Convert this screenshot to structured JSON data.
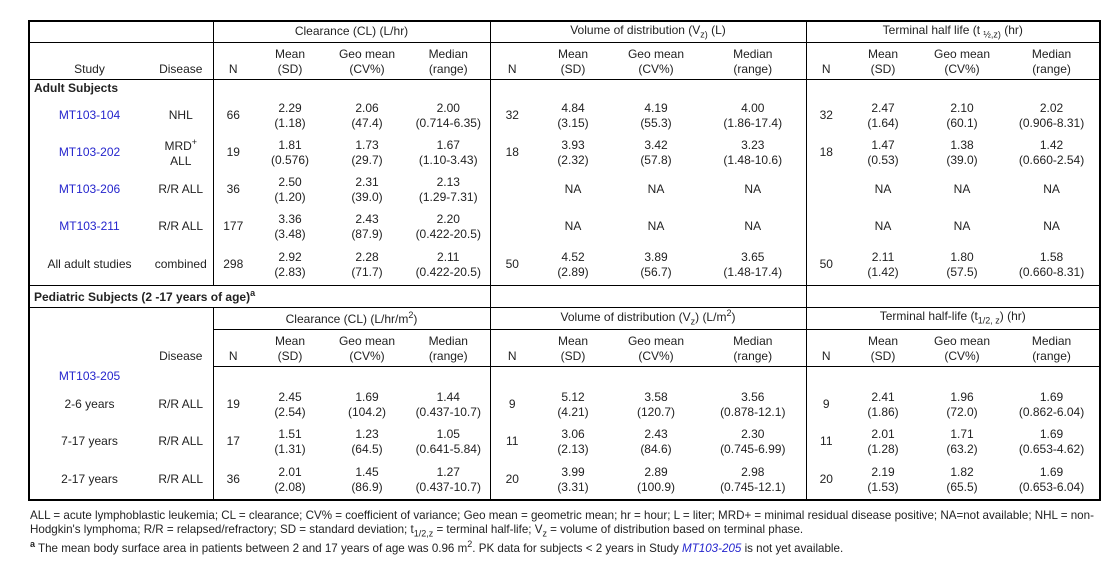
{
  "colors": {
    "link_blue": "#2525cd",
    "text": "#222222",
    "border": "#000000"
  },
  "header": {
    "study": "Study",
    "disease": "Disease",
    "sub": {
      "n": "N",
      "mean": "Mean\n(SD)",
      "geo": "Geo mean\n(CV%)",
      "median": "Median\n(range)"
    }
  },
  "adult": {
    "section_title": "Adult Subjects",
    "groups": [
      {
        "title": "Clearance (CL) (L/hr)"
      },
      {
        "title": "Volume of distribution (V~z)~ (L)"
      },
      {
        "title": "Terminal half life (t ~½,z)~ (hr)"
      }
    ],
    "rows": [
      {
        "study": "MT103-104",
        "disease": "NHL",
        "cl": {
          "n": "66",
          "mean": "2.29\n(1.18)",
          "geo": "2.06\n(47.4)",
          "median": "2.00\n(0.714-6.35)"
        },
        "vd": {
          "n": "32",
          "mean": "4.84\n(3.15)",
          "geo": "4.19\n(55.3)",
          "median": "4.00\n(1.86-17.4)"
        },
        "hl": {
          "n": "32",
          "mean": "2.47\n(1.64)",
          "geo": "2.10\n(60.1)",
          "median": "2.02\n(0.906-8.31)"
        }
      },
      {
        "study": "MT103-202",
        "disease": "MRD^+^\nALL",
        "cl": {
          "n": "19",
          "mean": "1.81\n(0.576)",
          "geo": "1.73\n(29.7)",
          "median": "1.67\n(1.10-3.43)"
        },
        "vd": {
          "n": "18",
          "mean": "3.93\n(2.32)",
          "geo": "3.42\n(57.8)",
          "median": "3.23\n(1.48-10.6)"
        },
        "hl": {
          "n": "18",
          "mean": "1.47\n(0.53)",
          "geo": "1.38\n(39.0)",
          "median": "1.42\n(0.660-2.54)"
        }
      },
      {
        "study": "MT103-206",
        "disease": "R/R ALL",
        "cl": {
          "n": "36",
          "mean": "2.50\n(1.20)",
          "geo": "2.31\n(39.0)",
          "median": "2.13\n(1.29-7.31)"
        },
        "vd": {
          "n": "",
          "mean": "NA",
          "geo": "NA",
          "median": "NA"
        },
        "hl": {
          "n": "",
          "mean": "NA",
          "geo": "NA",
          "median": "NA"
        }
      },
      {
        "study": "MT103-211",
        "disease": "R/R ALL",
        "cl": {
          "n": "177",
          "mean": "3.36\n(3.48)",
          "geo": "2.43\n(87.9)",
          "median": "2.20\n(0.422-20.5)"
        },
        "vd": {
          "n": "",
          "mean": "NA",
          "geo": "NA",
          "median": "NA"
        },
        "hl": {
          "n": "",
          "mean": "NA",
          "geo": "NA",
          "median": "NA"
        }
      },
      {
        "study": "All adult studies",
        "disease": "combined",
        "cl": {
          "n": "298",
          "mean": "2.92\n(2.83)",
          "geo": "2.28\n(71.7)",
          "median": "2.11\n(0.422-20.5)"
        },
        "vd": {
          "n": "50",
          "mean": "4.52\n(2.89)",
          "geo": "3.89\n(56.7)",
          "median": "3.65\n(1.48-17.4)"
        },
        "hl": {
          "n": "50",
          "mean": "2.11\n(1.42)",
          "geo": "1.80\n(57.5)",
          "median": "1.58\n(0.660-8.31)"
        }
      }
    ]
  },
  "pediatric": {
    "section_title": "Pediatric Subjects (2 -17 years of age)^a^",
    "groups": [
      {
        "title": "Clearance (CL) (L/hr/m^2^)"
      },
      {
        "title": "Volume of distribution (V~z~) (L/m^2^)"
      },
      {
        "title": "Terminal half-life (t~1/2, z~) (hr)"
      }
    ],
    "study_label": "MT103-205",
    "rows": [
      {
        "study": "2-6 years",
        "disease": "R/R ALL",
        "cl": {
          "n": "19",
          "mean": "2.45\n(2.54)",
          "geo": "1.69\n(104.2)",
          "median": "1.44\n(0.437-10.7)"
        },
        "vd": {
          "n": "9",
          "mean": "5.12\n(4.21)",
          "geo": "3.58\n(120.7)",
          "median": "3.56\n(0.878-12.1)"
        },
        "hl": {
          "n": "9",
          "mean": "2.41\n(1.86)",
          "geo": "1.96\n(72.0)",
          "median": "1.69\n(0.862-6.04)"
        }
      },
      {
        "study": "7-17 years",
        "disease": "R/R ALL",
        "cl": {
          "n": "17",
          "mean": "1.51\n(1.31)",
          "geo": "1.23\n(64.5)",
          "median": "1.05\n(0.641-5.84)"
        },
        "vd": {
          "n": "11",
          "mean": "3.06\n(2.13)",
          "geo": "2.43\n(84.6)",
          "median": "2.30\n(0.745-6.99)"
        },
        "hl": {
          "n": "11",
          "mean": "2.01\n(1.28)",
          "geo": "1.71\n(63.2)",
          "median": "1.69\n(0.653-4.62)"
        }
      },
      {
        "study": "2-17 years",
        "disease": "R/R ALL",
        "cl": {
          "n": "36",
          "mean": "2.01\n(2.08)",
          "geo": "1.45\n(86.9)",
          "median": "1.27\n(0.437-10.7)"
        },
        "vd": {
          "n": "20",
          "mean": "3.99\n(3.31)",
          "geo": "2.89\n(100.9)",
          "median": "2.98\n(0.745-12.1)"
        },
        "hl": {
          "n": "20",
          "mean": "2.19\n(1.53)",
          "geo": "1.82\n(65.5)",
          "median": "1.69\n(0.653-6.04)"
        }
      }
    ]
  },
  "footnotes": {
    "abbrev": "ALL = acute lymphoblastic leukemia; CL = clearance; CV% = coefficient of variance; Geo mean = geometric mean; hr = hour; L = liter; MRD+ = minimal residual disease positive; NA=not available; NHL = non-Hodgkin's lymphoma; R/R = relapsed/refractory; SD = standard deviation; t~1/2,z~ = terminal half-life; V~z~ = volume of distribution based on terminal phase.",
    "a_marker": "a",
    "a_prefix": " The mean body surface area in patients between 2 and 17 years of age was 0.96 m^2^.  PK data for subjects < 2 years in Study ",
    "a_study": "MT103-205",
    "a_suffix": " is not yet available."
  }
}
